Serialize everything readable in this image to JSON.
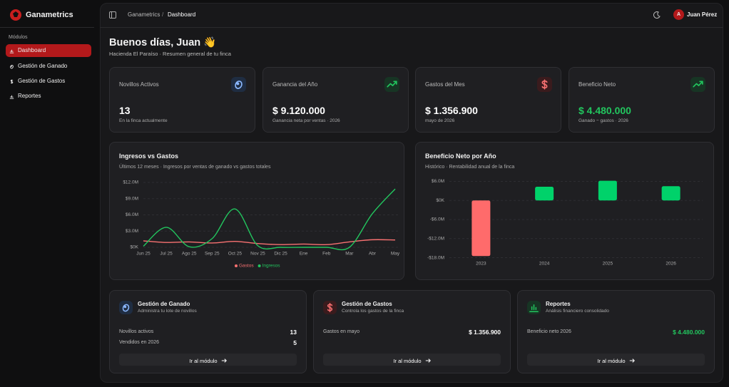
{
  "sidebar": {
    "brand": "Ganametrics",
    "section": "Módulos",
    "items": [
      "Dashboard",
      "Gestión de Ganado",
      "Gestión de Gastos",
      "Reportes"
    ]
  },
  "topbar": {
    "breadcrumb": [
      "Ganametrics",
      "/",
      "Dashboard"
    ],
    "avatar": "A",
    "user": "Juan Pérez"
  },
  "header": {
    "title": "Buenos días, Juan 👋",
    "subtitle": "Hacienda El Paraíso · Resumen general de tu finca"
  },
  "stats": [
    {
      "label": "Novillos Activos",
      "value": "13",
      "note": "En la finca actualmente"
    },
    {
      "label": "Ganancia del Año",
      "value": "$ 9.120.000",
      "note": "Ganancia neta por ventas · 2026"
    },
    {
      "label": "Gastos del Mes",
      "value": "$ 1.356.900",
      "note": "mayo de 2026"
    },
    {
      "label": "Beneficio Neto",
      "value": "$ 4.480.000",
      "note": "Ganado − gastos · 2026"
    }
  ],
  "chart_data": [
    {
      "type": "line",
      "title": "Ingresos vs Gastos",
      "subtitle": "Últimos 12 meses · Ingresos por ventas de ganado vs gastos totales",
      "categories": [
        "Jun 25",
        "Jul 25",
        "Ago 25",
        "Sep 25",
        "Oct 25",
        "Nov 25",
        "Dic 25",
        "Ene",
        "Feb",
        "Mar",
        "Abr",
        "May"
      ],
      "series": [
        {
          "name": "Gastos",
          "color": "#f87171",
          "values": [
            1200000,
            900000,
            1000000,
            800000,
            1100000,
            700000,
            500000,
            600000,
            500000,
            1000000,
            1400000,
            1356900
          ]
        },
        {
          "name": "Ingresos",
          "color": "#22c55e",
          "values": [
            200000,
            3700000,
            100000,
            1600000,
            7100000,
            300000,
            0,
            0,
            0,
            0,
            6200000,
            10800000
          ]
        }
      ],
      "ylim": [
        0,
        12000000
      ],
      "yticks": [
        {
          "value": 0,
          "label": "$0K"
        },
        {
          "value": 3000000,
          "label": "$3.0M"
        },
        {
          "value": 6000000,
          "label": "$6.0M"
        },
        {
          "value": 9000000,
          "label": "$9.0M"
        },
        {
          "value": 12000000,
          "label": "$12.0M"
        }
      ],
      "grid": true
    },
    {
      "type": "bar",
      "title": "Beneficio Neto por Año",
      "subtitle": "Histórico · Rentabilidad anual de la finca",
      "categories": [
        "2023",
        "2024",
        "2025",
        "2026"
      ],
      "values": [
        -17500000,
        4300000,
        6200000,
        4480000
      ],
      "colors": [
        "#ff6b6b",
        "#00d26a",
        "#00d26a",
        "#00d26a"
      ],
      "ylim": [
        -19000000,
        7000000
      ],
      "yticks": [
        {
          "value": 6000000,
          "label": "$6.0M"
        },
        {
          "value": 0,
          "label": "$0K"
        },
        {
          "value": -6000000,
          "label": "-$6.0M"
        },
        {
          "value": -12000000,
          "label": "-$12.0M"
        },
        {
          "value": -18000000,
          "label": "-$18.0M"
        }
      ],
      "grid": true
    }
  ],
  "modules": [
    {
      "title": "Gestión de Ganado",
      "subtitle": "Administra tu lote de novillos",
      "rows": [
        [
          "Novillos activos",
          "13"
        ],
        [
          "Vendidos en 2026",
          "5"
        ]
      ],
      "button": "Ir al módulo"
    },
    {
      "title": "Gestión de Gastos",
      "subtitle": "Controla los gastos de la finca",
      "rows": [
        [
          "Gastos en mayo",
          "$ 1.356.900"
        ]
      ],
      "button": "Ir al módulo"
    },
    {
      "title": "Reportes",
      "subtitle": "Análisis financiero consolidado",
      "rows": [
        [
          "Beneficio neto 2026",
          "$ 4.480.000"
        ]
      ],
      "button": "Ir al módulo"
    }
  ]
}
